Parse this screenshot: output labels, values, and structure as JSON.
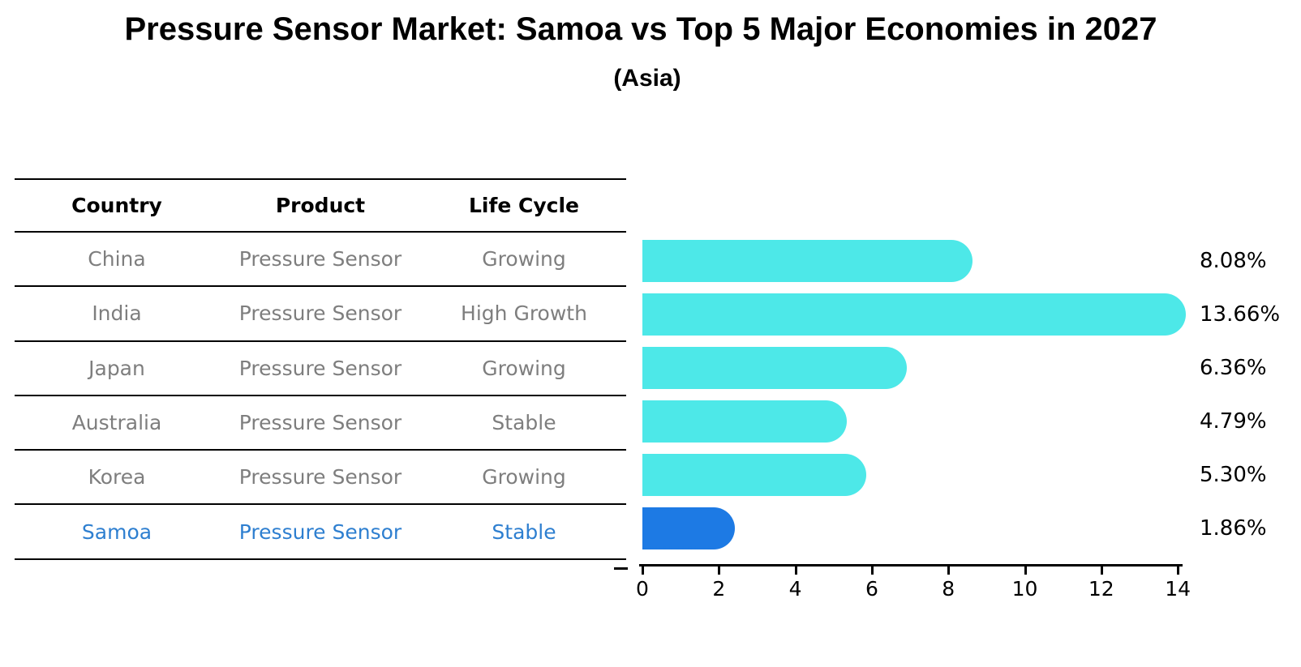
{
  "title": "Pressure Sensor Market: Samoa vs Top 5 Major Economies in 2027",
  "subtitle": "(Asia)",
  "table": {
    "headers": [
      "Country",
      "Product",
      "Life Cycle"
    ],
    "rows": [
      {
        "country": "China",
        "product": "Pressure Sensor",
        "life_cycle": "Growing",
        "highlight": false
      },
      {
        "country": "India",
        "product": "Pressure Sensor",
        "life_cycle": "High Growth",
        "highlight": false
      },
      {
        "country": "Japan",
        "product": "Pressure Sensor",
        "life_cycle": "Growing",
        "highlight": false
      },
      {
        "country": "Australia",
        "product": "Pressure Sensor",
        "life_cycle": "Stable",
        "highlight": false
      },
      {
        "country": "Korea",
        "product": "Pressure Sensor",
        "life_cycle": "Growing",
        "highlight": false
      },
      {
        "country": "Samoa",
        "product": "Pressure Sensor",
        "life_cycle": "Stable",
        "highlight": true
      }
    ]
  },
  "chart_data": {
    "type": "bar",
    "orientation": "horizontal",
    "title": "Pressure Sensor Market: Samoa vs Top 5 Major Economies in 2027",
    "subtitle": "(Asia)",
    "categories": [
      "China",
      "India",
      "Japan",
      "Australia",
      "Korea",
      "Samoa"
    ],
    "values": [
      8.08,
      13.66,
      6.36,
      4.79,
      5.3,
      1.86
    ],
    "value_labels": [
      "8.08%",
      "13.66%",
      "6.36%",
      "4.79%",
      "5.30%",
      "1.86%"
    ],
    "xlabel": "",
    "ylabel": "",
    "xlim": [
      0,
      14
    ],
    "xticks": [
      "0",
      "2",
      "4",
      "6",
      "8",
      "10",
      "12",
      "14"
    ],
    "grid": false,
    "legend": "none",
    "bar_color": "#4DE8E8",
    "highlight_color": "#1D7AE4",
    "highlight_index": 5,
    "highlight_edge_style": "dotted",
    "text_color_normal": "#7e7e7e",
    "text_color_highlight": "#2e7fd0"
  }
}
